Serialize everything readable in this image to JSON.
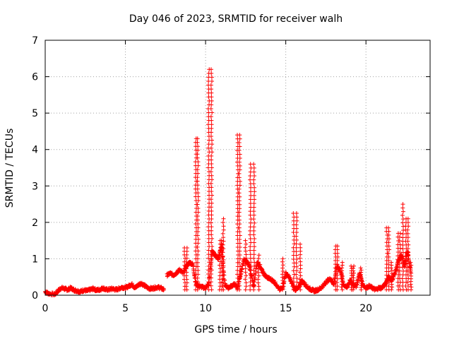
{
  "chart_data": {
    "type": "scatter",
    "title": "Day 046 of 2023, SRMTID for receiver walh",
    "xlabel": "GPS time / hours",
    "ylabel": "SRMTID / TECUs",
    "xlim": [
      0,
      24
    ],
    "ylim": [
      0,
      7
    ],
    "xticks": [
      "0",
      "5",
      "10",
      "15",
      "20"
    ],
    "yticks": [
      "0",
      "1",
      "2",
      "3",
      "4",
      "5",
      "6",
      "7"
    ],
    "grid": true,
    "marker": "plus",
    "color": "#ff0000",
    "baseline_segments": [
      {
        "x": [
          0.0,
          0.2,
          0.6,
          0.8,
          1.0,
          1.2,
          1.4,
          1.6,
          1.8,
          2.0,
          2.2,
          2.4,
          2.6,
          2.8,
          3.0,
          3.2,
          3.4,
          3.6,
          3.8,
          4.0,
          4.2,
          4.4,
          4.6,
          4.8,
          5.0,
          5.2,
          5.4,
          5.6,
          5.8,
          6.0,
          6.2,
          6.4,
          6.6,
          6.8,
          7.0,
          7.2,
          7.4
        ],
        "y": [
          0.1,
          0.05,
          0.02,
          0.12,
          0.2,
          0.18,
          0.15,
          0.2,
          0.14,
          0.12,
          0.1,
          0.14,
          0.12,
          0.15,
          0.18,
          0.14,
          0.15,
          0.2,
          0.15,
          0.16,
          0.18,
          0.15,
          0.18,
          0.22,
          0.2,
          0.25,
          0.3,
          0.2,
          0.28,
          0.33,
          0.26,
          0.2,
          0.18,
          0.2,
          0.22,
          0.2,
          0.15
        ]
      },
      {
        "x": [
          7.6,
          7.8,
          8.0,
          8.2,
          8.4,
          8.6,
          8.8,
          9.0,
          9.2,
          9.4,
          9.6,
          9.8,
          10.0,
          10.2,
          10.4,
          10.6,
          10.8,
          11.0,
          11.2,
          11.4,
          11.6,
          11.8,
          12.0,
          12.2,
          12.4,
          12.6,
          12.8,
          13.0,
          13.2,
          13.4,
          13.6,
          13.8,
          14.0,
          14.2,
          14.4,
          14.6,
          14.8,
          15.0,
          15.2,
          15.4,
          15.6,
          15.8,
          16.0,
          16.2,
          16.4,
          16.6,
          16.8,
          17.0,
          17.2,
          17.4,
          17.6,
          17.8,
          18.0,
          18.2,
          18.4,
          18.6,
          18.8,
          19.0,
          19.2,
          19.4,
          19.6,
          19.8,
          20.0,
          20.2,
          20.4,
          20.6,
          20.8,
          21.0,
          21.2,
          21.4,
          21.6,
          21.8,
          22.0,
          22.2,
          22.4,
          22.6,
          22.8
        ],
        "y": [
          0.55,
          0.6,
          0.55,
          0.62,
          0.7,
          0.6,
          0.8,
          0.9,
          0.85,
          0.3,
          0.25,
          0.22,
          0.2,
          0.3,
          1.2,
          1.1,
          1.0,
          1.4,
          0.3,
          0.2,
          0.25,
          0.3,
          0.2,
          0.6,
          1.0,
          0.9,
          0.7,
          0.2,
          0.9,
          0.8,
          0.6,
          0.5,
          0.45,
          0.4,
          0.3,
          0.15,
          0.2,
          0.6,
          0.5,
          0.3,
          0.15,
          0.2,
          0.4,
          0.3,
          0.2,
          0.15,
          0.12,
          0.15,
          0.2,
          0.3,
          0.4,
          0.45,
          0.3,
          0.8,
          0.7,
          0.3,
          0.2,
          0.4,
          0.3,
          0.25,
          0.6,
          0.3,
          0.2,
          0.25,
          0.2,
          0.15,
          0.2,
          0.2,
          0.3,
          0.5,
          0.4,
          0.6,
          0.9,
          1.1,
          0.8,
          1.2,
          0.6
        ]
      }
    ],
    "spikes": [
      {
        "x": [
          8.7,
          8.8
        ],
        "y_max": 1.3
      },
      {
        "x": [
          9.4,
          9.5
        ],
        "y_max": 4.3
      },
      {
        "x": [
          10.2,
          10.35
        ],
        "y_max": 6.2
      },
      {
        "x": [
          10.9,
          11.0
        ],
        "y_max": 1.5
      },
      {
        "x": [
          11.1
        ],
        "y_max": 2.1
      },
      {
        "x": [
          12.0,
          12.1
        ],
        "y_max": 4.4
      },
      {
        "x": [
          12.5
        ],
        "y_max": 1.5
      },
      {
        "x": [
          12.8,
          13.0
        ],
        "y_max": 3.6
      },
      {
        "x": [
          13.3
        ],
        "y_max": 1.1
      },
      {
        "x": [
          14.8
        ],
        "y_max": 1.0
      },
      {
        "x": [
          15.5,
          15.65
        ],
        "y_max": 2.25
      },
      {
        "x": [
          15.9
        ],
        "y_max": 1.4
      },
      {
        "x": [
          18.1,
          18.2
        ],
        "y_max": 1.35
      },
      {
        "x": [
          18.5
        ],
        "y_max": 0.9
      },
      {
        "x": [
          19.1,
          19.2
        ],
        "y_max": 0.8
      },
      {
        "x": [
          19.7
        ],
        "y_max": 0.75
      },
      {
        "x": [
          21.3,
          21.4
        ],
        "y_max": 1.85
      },
      {
        "x": [
          21.6
        ],
        "y_max": 0.9
      },
      {
        "x": [
          22.0,
          22.1
        ],
        "y_max": 1.7
      },
      {
        "x": [
          22.3
        ],
        "y_max": 2.5
      },
      {
        "x": [
          22.5,
          22.6
        ],
        "y_max": 2.1
      },
      {
        "x": [
          22.8
        ],
        "y_max": 0.9
      }
    ]
  }
}
